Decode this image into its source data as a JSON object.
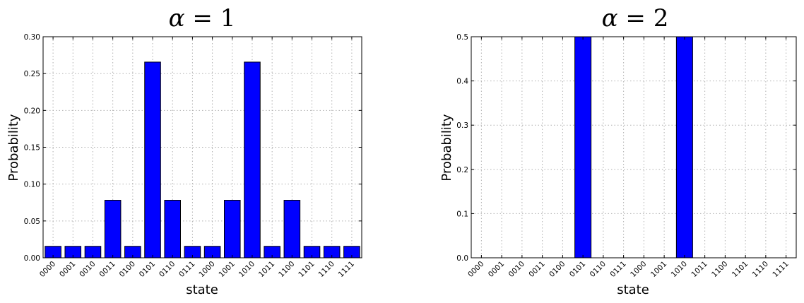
{
  "chart_data": [
    {
      "type": "bar",
      "title_var": "α",
      "title_rest": " = 1",
      "xlabel": "state",
      "ylabel": "Probability",
      "ylim": [
        0,
        0.3
      ],
      "yticks": [
        "0.00",
        "0.05",
        "0.10",
        "0.15",
        "0.20",
        "0.25",
        "0.30"
      ],
      "grid": true,
      "color": "#0000ff",
      "categories": [
        "0000",
        "0001",
        "0010",
        "0011",
        "0100",
        "0101",
        "0110",
        "0111",
        "1000",
        "1001",
        "1010",
        "1011",
        "1100",
        "1101",
        "1110",
        "1111"
      ],
      "values": [
        0.0156,
        0.0156,
        0.0156,
        0.0781,
        0.0156,
        0.2656,
        0.0781,
        0.0156,
        0.0156,
        0.0781,
        0.2656,
        0.0156,
        0.0781,
        0.0156,
        0.0156,
        0.0156
      ]
    },
    {
      "type": "bar",
      "title_var": "α",
      "title_rest": " = 2",
      "xlabel": "state",
      "ylabel": "Probability",
      "ylim": [
        0,
        0.5
      ],
      "yticks": [
        "0.0",
        "0.1",
        "0.2",
        "0.3",
        "0.4",
        "0.5"
      ],
      "grid": true,
      "color": "#0000ff",
      "categories": [
        "0000",
        "0001",
        "0010",
        "0011",
        "0100",
        "0101",
        "0110",
        "0111",
        "1000",
        "1001",
        "1010",
        "1011",
        "1100",
        "1101",
        "1110",
        "1111"
      ],
      "values": [
        0,
        0,
        0,
        0,
        0,
        0.5,
        0,
        0,
        0,
        0,
        0.5,
        0,
        0,
        0,
        0,
        0
      ]
    }
  ]
}
